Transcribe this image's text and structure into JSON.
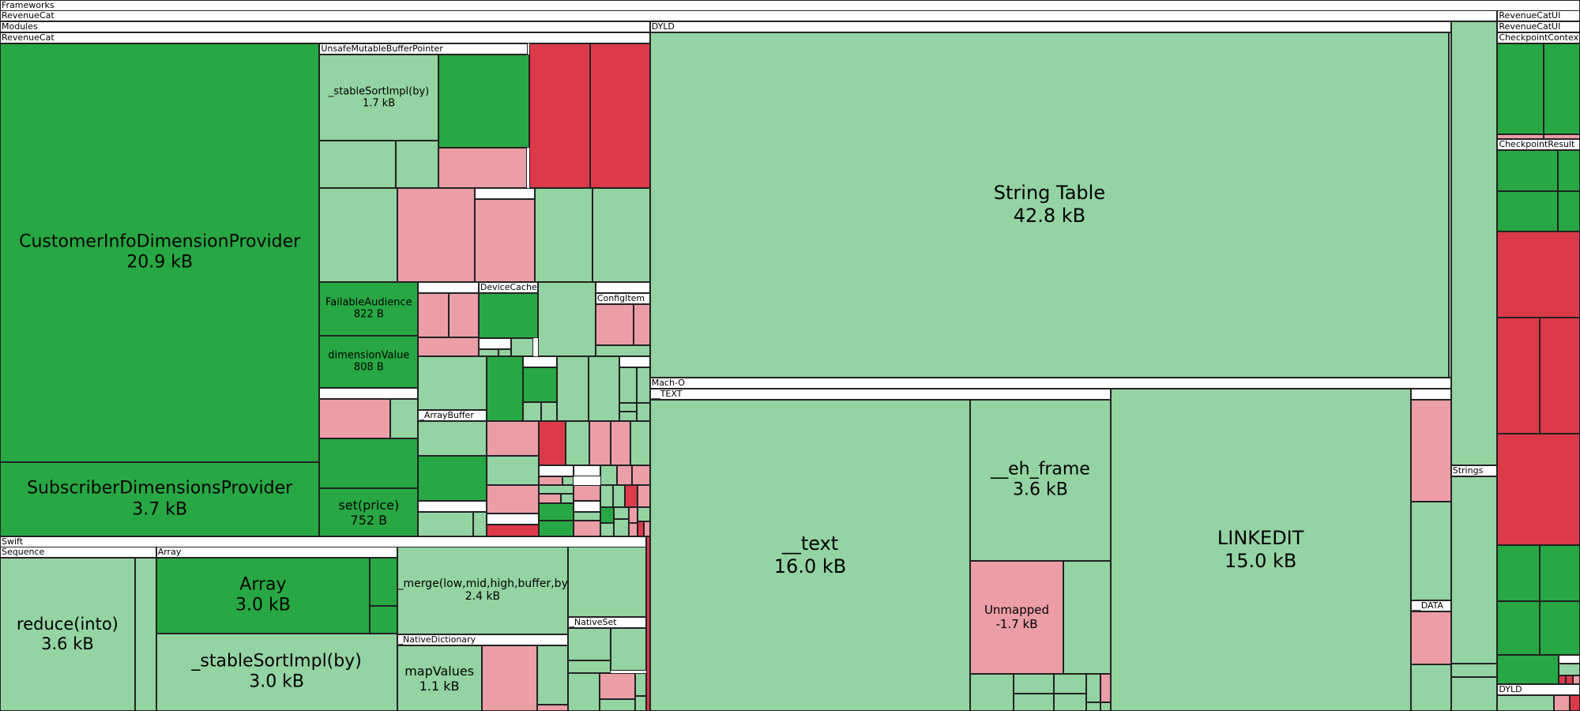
{
  "chart_data": {
    "type": "treemap",
    "title": "",
    "colors": {
      "dark_green": "#27a844",
      "light_green": "#94d3a2",
      "pink": "#eb9ea6",
      "red": "#dc3a4b",
      "header": "#ffffff"
    },
    "groups": [
      {
        "name": "Frameworks"
      },
      {
        "name": "RevenueCat"
      },
      {
        "name": "Modules"
      },
      {
        "name": "RevenueCat"
      },
      {
        "name": "UnsafeMutableBufferPointer"
      },
      {
        "name": "DeviceCache"
      },
      {
        "name": "ConfigItem"
      },
      {
        "name": "_ArrayBuffer"
      },
      {
        "name": "Swift"
      },
      {
        "name": "Sequence"
      },
      {
        "name": "Array"
      },
      {
        "name": "_NativeDictionary"
      },
      {
        "name": "_NativeSet"
      },
      {
        "name": "DYLD"
      },
      {
        "name": "Mach-O"
      },
      {
        "name": "__TEXT"
      },
      {
        "name": "Strings"
      },
      {
        "name": "__DATA"
      },
      {
        "name": "RevenueCatUI"
      },
      {
        "name": "RevenueCatUI"
      },
      {
        "name": "CheckpointContext"
      },
      {
        "name": "CheckpointResult"
      },
      {
        "name": "DYLD"
      }
    ],
    "nodes": [
      {
        "name": "CustomerInfoDimensionProvider",
        "size": "20.9 kB",
        "bytes": 20900
      },
      {
        "name": "SubscriberDimensionsProvider",
        "size": "3.7 kB",
        "bytes": 3700
      },
      {
        "name": "_stableSortImpl(by)",
        "size": "1.7 kB",
        "bytes": 1700
      },
      {
        "name": "FailableAudience",
        "size": "822 B",
        "bytes": 822
      },
      {
        "name": "dimensionValue",
        "size": "808 B",
        "bytes": 808
      },
      {
        "name": "set(price)",
        "size": "752 B",
        "bytes": 752
      },
      {
        "name": "reduce(into)",
        "size": "3.6 kB",
        "bytes": 3600
      },
      {
        "name": "Array",
        "size": "3.0 kB",
        "bytes": 3000
      },
      {
        "name": "_stableSortImpl(by)",
        "size": "3.0 kB",
        "bytes": 3000
      },
      {
        "name": "_merge(low,mid,high,buffer,by)",
        "size": "2.4 kB",
        "bytes": 2400
      },
      {
        "name": "mapValues",
        "size": "1.1 kB",
        "bytes": 1100
      },
      {
        "name": "String Table",
        "size": "42.8 kB",
        "bytes": 42800
      },
      {
        "name": "__text",
        "size": "16.0 kB",
        "bytes": 16000
      },
      {
        "name": "__eh_frame",
        "size": "3.6 kB",
        "bytes": 3600
      },
      {
        "name": "Unmapped",
        "size": "-1.7 kB",
        "bytes": -1700
      },
      {
        "name": "LINKEDIT",
        "size": "15.0 kB",
        "bytes": 15000
      }
    ]
  }
}
